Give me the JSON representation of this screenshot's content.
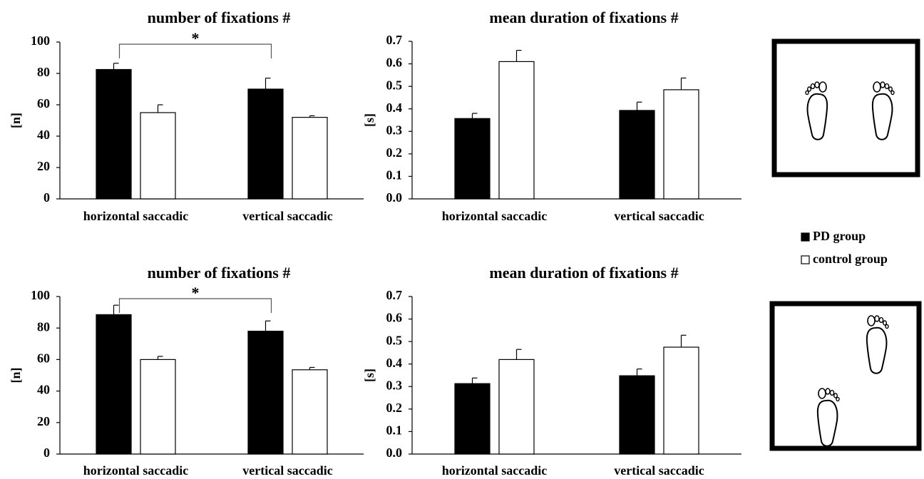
{
  "chart_data": [
    {
      "type": "bar",
      "title": "number of fixations #",
      "ylabel": "[n]",
      "annotation": "*",
      "categories": [
        "horizontal saccadic",
        "vertical saccadic"
      ],
      "series": [
        {
          "name": "PD group",
          "color": "#000000",
          "values": [
            82.5,
            70
          ],
          "errors": [
            4,
            7
          ]
        },
        {
          "name": "control group",
          "color": "#ffffff",
          "values": [
            55,
            52
          ],
          "errors": [
            5,
            1
          ]
        }
      ],
      "ylim": [
        0,
        100
      ],
      "yticks": [
        0,
        20,
        40,
        60,
        80,
        100
      ]
    },
    {
      "type": "bar",
      "title": "mean duration of fixations #",
      "ylabel": "[s]",
      "categories": [
        "horizontal saccadic",
        "vertical saccadic"
      ],
      "series": [
        {
          "color": "#000000",
          "values": [
            0.357,
            0.393
          ],
          "errors": [
            0.023,
            0.037
          ]
        },
        {
          "color": "#ffffff",
          "values": [
            0.61,
            0.485
          ],
          "errors": [
            0.05,
            0.052
          ]
        }
      ],
      "ylim": [
        0,
        0.7
      ],
      "yticks": [
        {
          "value": 0,
          "label": "0.0"
        },
        0.1,
        0.2,
        0.3,
        0.4,
        0.5,
        0.6,
        0.7
      ]
    },
    {
      "type": "bar",
      "title": "number of fixations #",
      "ylabel": "[n]",
      "annotation": "*",
      "categories": [
        "horizontal saccadic",
        "vertical saccadic"
      ],
      "series": [
        {
          "color": "#000000",
          "values": [
            88.5,
            78
          ],
          "errors": [
            6,
            6.5
          ]
        },
        {
          "color": "#ffffff",
          "values": [
            60,
            53.5
          ],
          "errors": [
            2,
            1.5
          ]
        }
      ],
      "ylim": [
        0,
        100
      ],
      "yticks": [
        0,
        20,
        40,
        60,
        80,
        100
      ]
    },
    {
      "type": "bar",
      "title": "mean duration of fixations #",
      "ylabel": "[s]",
      "categories": [
        "horizontal saccadic",
        "vertical saccadic"
      ],
      "series": [
        {
          "color": "#000000",
          "values": [
            0.313,
            0.348
          ],
          "errors": [
            0.025,
            0.03
          ]
        },
        {
          "color": "#ffffff",
          "values": [
            0.42,
            0.475
          ],
          "errors": [
            0.045,
            0.053
          ]
        }
      ],
      "ylim": [
        0,
        0.7
      ],
      "yticks": [
        {
          "value": 0,
          "label": "0.0"
        },
        0.1,
        0.2,
        0.3,
        0.4,
        0.5,
        0.6,
        0.7
      ]
    }
  ]
}
